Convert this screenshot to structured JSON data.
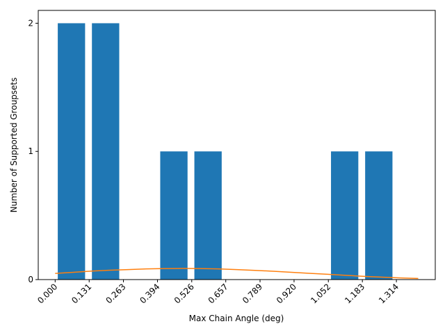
{
  "chart_data": {
    "type": "bar",
    "xlabel": "Max Chain Angle (deg)",
    "ylabel": "Number of Supported Groupsets",
    "xlim": [
      -0.0651,
      1.4637
    ],
    "ylim": [
      0,
      2.1
    ],
    "grid": false,
    "xticks": [
      0.0,
      0.131,
      0.263,
      0.394,
      0.526,
      0.657,
      0.789,
      0.92,
      1.052,
      1.183,
      1.314
    ],
    "xtick_labels": [
      "0.000",
      "0.131",
      "0.263",
      "0.394",
      "0.526",
      "0.657",
      "0.789",
      "0.920",
      "1.052",
      "1.183",
      "1.314"
    ],
    "yticks": [
      0,
      1,
      2
    ],
    "ytick_labels": [
      "0",
      "1",
      "2"
    ],
    "bars": [
      {
        "left": 0.0101,
        "right": 0.1153,
        "value": 2
      },
      {
        "left": 0.1416,
        "right": 0.2468,
        "value": 2
      },
      {
        "left": 0.4046,
        "right": 0.5098,
        "value": 1
      },
      {
        "left": 0.5361,
        "right": 0.6413,
        "value": 1
      },
      {
        "left": 1.0622,
        "right": 1.1674,
        "value": 1
      },
      {
        "left": 1.1937,
        "right": 1.2989,
        "value": 1
      }
    ],
    "bar_color": "#1f77b4",
    "curve": {
      "color": "#ff7f0e",
      "x": [
        0.0,
        0.07,
        0.14,
        0.21,
        0.28,
        0.35,
        0.42,
        0.49,
        0.56,
        0.63,
        0.7,
        0.77,
        0.84,
        0.91,
        0.98,
        1.05,
        1.12,
        1.19,
        1.26,
        1.33,
        1.398
      ],
      "y": [
        0.048,
        0.057,
        0.066,
        0.073,
        0.078,
        0.083,
        0.086,
        0.087,
        0.086,
        0.083,
        0.078,
        0.072,
        0.065,
        0.057,
        0.049,
        0.041,
        0.033,
        0.025,
        0.019,
        0.013,
        0.009
      ]
    }
  }
}
